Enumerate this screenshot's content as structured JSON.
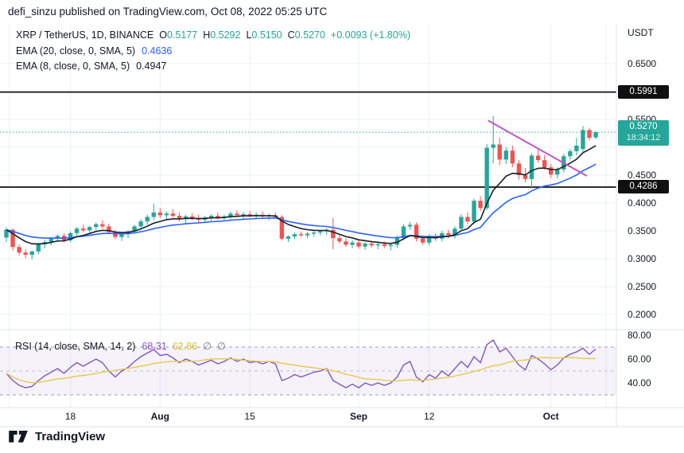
{
  "attribution": "defi_sinzu published on TradingView.com, Oct 08, 2022 05:25 UTC",
  "watermark": "TradingView",
  "legend": {
    "symbol": "XRP / TetherUS, 1D, BINANCE",
    "ohlc": [
      {
        "label": "O",
        "value": "0.5177"
      },
      {
        "label": "H",
        "value": "0.5292"
      },
      {
        "label": "L",
        "value": "0.5150"
      },
      {
        "label": "C",
        "value": "0.5270"
      }
    ],
    "change": "+0.0093 (+1.80%)",
    "indicators": [
      {
        "label": "EMA (20, close, 0, SMA, 5)",
        "value": "0.4636"
      },
      {
        "label": "EMA (8, close, 0, SMA, 5)",
        "value": "0.4947"
      }
    ],
    "rsi": {
      "label": "RSI (14, close, SMA, 14, 2)",
      "value": "68.31",
      "ma_value": "62.86",
      "empty_values": [
        "∅",
        "∅"
      ]
    }
  },
  "price_axis": {
    "currency": "USDT",
    "ticks": [
      {
        "label": "0.6500",
        "price": 0.65
      },
      {
        "label": "0.5500",
        "price": 0.55
      },
      {
        "label": "0.4500",
        "price": 0.45
      },
      {
        "label": "0.4000",
        "price": 0.4
      },
      {
        "label": "0.3500",
        "price": 0.35
      },
      {
        "label": "0.3000",
        "price": 0.3
      },
      {
        "label": "0.2500",
        "price": 0.25
      },
      {
        "label": "0.2000",
        "price": 0.2
      }
    ],
    "level_badges": [
      {
        "label": "0.5991",
        "price": 0.5991,
        "bg": "#101010"
      },
      {
        "label": "0.4286",
        "price": 0.4286,
        "bg": "#101010"
      }
    ],
    "last_price_badge": {
      "label": "0.5270",
      "price": 0.527,
      "countdown": "18:34:12",
      "bg": "#26a69a"
    },
    "rsi_ticks": [
      {
        "label": "80.00",
        "value": 80
      },
      {
        "label": "60.00",
        "value": 60
      },
      {
        "label": "40.00",
        "value": 40
      }
    ]
  },
  "time_axis": {
    "ticks": [
      {
        "label": "18",
        "index": 10,
        "bold": false
      },
      {
        "label": "Aug",
        "index": 24,
        "bold": true
      },
      {
        "label": "15",
        "index": 38,
        "bold": false
      },
      {
        "label": "Sep",
        "index": 55,
        "bold": true
      },
      {
        "label": "12",
        "index": 66,
        "bold": false
      },
      {
        "label": "Oct",
        "index": 85,
        "bold": true
      }
    ],
    "grid_indices": [
      0.5,
      10,
      24,
      38,
      55,
      66,
      85,
      93.6
    ]
  },
  "colors": {
    "up": "#26a69a",
    "down": "#ef5350",
    "grid": "#eef0f5",
    "border": "#e0e3eb",
    "text": "#131722",
    "muted": "#787b86",
    "rsi_band": "rgba(126,87,194,0.08)",
    "rsi_level": "#9598a1"
  },
  "chart_data": {
    "type": "candlestick",
    "symbol": "XRP/USDT",
    "exchange": "BINANCE",
    "interval": "1D",
    "start_date": "2022-07-08",
    "ylim": [
      0.176,
      0.721
    ],
    "grid": true,
    "candles": [
      [
        0.338,
        0.356,
        0.33,
        0.352
      ],
      [
        0.352,
        0.354,
        0.315,
        0.321
      ],
      [
        0.321,
        0.326,
        0.306,
        0.311
      ],
      [
        0.311,
        0.317,
        0.301,
        0.307
      ],
      [
        0.307,
        0.315,
        0.299,
        0.313
      ],
      [
        0.313,
        0.329,
        0.308,
        0.326
      ],
      [
        0.326,
        0.334,
        0.319,
        0.33
      ],
      [
        0.33,
        0.339,
        0.324,
        0.336
      ],
      [
        0.336,
        0.344,
        0.331,
        0.341
      ],
      [
        0.341,
        0.346,
        0.329,
        0.333
      ],
      [
        0.333,
        0.349,
        0.33,
        0.346
      ],
      [
        0.346,
        0.357,
        0.341,
        0.354
      ],
      [
        0.354,
        0.361,
        0.347,
        0.351
      ],
      [
        0.351,
        0.359,
        0.345,
        0.357
      ],
      [
        0.357,
        0.365,
        0.351,
        0.362
      ],
      [
        0.362,
        0.369,
        0.354,
        0.358
      ],
      [
        0.358,
        0.363,
        0.344,
        0.348
      ],
      [
        0.348,
        0.352,
        0.335,
        0.339
      ],
      [
        0.339,
        0.347,
        0.332,
        0.344
      ],
      [
        0.344,
        0.351,
        0.337,
        0.349
      ],
      [
        0.349,
        0.361,
        0.345,
        0.358
      ],
      [
        0.358,
        0.371,
        0.353,
        0.367
      ],
      [
        0.367,
        0.379,
        0.361,
        0.375
      ],
      [
        0.375,
        0.399,
        0.369,
        0.383
      ],
      [
        0.383,
        0.391,
        0.373,
        0.378
      ],
      [
        0.378,
        0.385,
        0.369,
        0.381
      ],
      [
        0.381,
        0.389,
        0.374,
        0.377
      ],
      [
        0.377,
        0.383,
        0.367,
        0.371
      ],
      [
        0.371,
        0.379,
        0.364,
        0.376
      ],
      [
        0.376,
        0.382,
        0.369,
        0.373
      ],
      [
        0.373,
        0.379,
        0.365,
        0.37
      ],
      [
        0.37,
        0.377,
        0.364,
        0.374
      ],
      [
        0.374,
        0.38,
        0.368,
        0.377
      ],
      [
        0.377,
        0.383,
        0.37,
        0.373
      ],
      [
        0.373,
        0.379,
        0.367,
        0.376
      ],
      [
        0.376,
        0.385,
        0.371,
        0.381
      ],
      [
        0.381,
        0.387,
        0.375,
        0.378
      ],
      [
        0.378,
        0.384,
        0.372,
        0.38
      ],
      [
        0.38,
        0.386,
        0.374,
        0.377
      ],
      [
        0.377,
        0.383,
        0.371,
        0.379
      ],
      [
        0.379,
        0.385,
        0.373,
        0.376
      ],
      [
        0.376,
        0.381,
        0.369,
        0.378
      ],
      [
        0.378,
        0.383,
        0.372,
        0.375
      ],
      [
        0.375,
        0.378,
        0.333,
        0.336
      ],
      [
        0.336,
        0.342,
        0.33,
        0.34
      ],
      [
        0.34,
        0.347,
        0.335,
        0.344
      ],
      [
        0.344,
        0.349,
        0.339,
        0.342
      ],
      [
        0.342,
        0.348,
        0.337,
        0.345
      ],
      [
        0.345,
        0.351,
        0.34,
        0.347
      ],
      [
        0.347,
        0.352,
        0.342,
        0.349
      ],
      [
        0.349,
        0.355,
        0.343,
        0.352
      ],
      [
        0.352,
        0.373,
        0.317,
        0.337
      ],
      [
        0.337,
        0.343,
        0.327,
        0.331
      ],
      [
        0.331,
        0.337,
        0.321,
        0.325
      ],
      [
        0.325,
        0.333,
        0.319,
        0.329
      ],
      [
        0.329,
        0.334,
        0.318,
        0.322
      ],
      [
        0.322,
        0.33,
        0.316,
        0.327
      ],
      [
        0.327,
        0.332,
        0.32,
        0.324
      ],
      [
        0.324,
        0.329,
        0.317,
        0.326
      ],
      [
        0.326,
        0.331,
        0.319,
        0.323
      ],
      [
        0.323,
        0.329,
        0.315,
        0.325
      ],
      [
        0.325,
        0.341,
        0.32,
        0.337
      ],
      [
        0.337,
        0.362,
        0.333,
        0.358
      ],
      [
        0.358,
        0.366,
        0.352,
        0.361
      ],
      [
        0.361,
        0.365,
        0.331,
        0.336
      ],
      [
        0.336,
        0.342,
        0.325,
        0.329
      ],
      [
        0.329,
        0.344,
        0.324,
        0.34
      ],
      [
        0.34,
        0.346,
        0.332,
        0.336
      ],
      [
        0.336,
        0.35,
        0.331,
        0.346
      ],
      [
        0.346,
        0.352,
        0.337,
        0.342
      ],
      [
        0.342,
        0.358,
        0.336,
        0.354
      ],
      [
        0.354,
        0.38,
        0.349,
        0.375
      ],
      [
        0.375,
        0.383,
        0.362,
        0.367
      ],
      [
        0.367,
        0.408,
        0.362,
        0.404
      ],
      [
        0.404,
        0.412,
        0.386,
        0.391
      ],
      [
        0.391,
        0.506,
        0.387,
        0.499
      ],
      [
        0.499,
        0.556,
        0.471,
        0.505
      ],
      [
        0.505,
        0.517,
        0.468,
        0.478
      ],
      [
        0.478,
        0.5,
        0.47,
        0.494
      ],
      [
        0.494,
        0.503,
        0.464,
        0.471
      ],
      [
        0.471,
        0.477,
        0.442,
        0.45
      ],
      [
        0.45,
        0.463,
        0.437,
        0.443
      ],
      [
        0.443,
        0.489,
        0.426,
        0.485
      ],
      [
        0.485,
        0.496,
        0.472,
        0.477
      ],
      [
        0.477,
        0.486,
        0.46,
        0.464
      ],
      [
        0.464,
        0.47,
        0.445,
        0.451
      ],
      [
        0.451,
        0.464,
        0.444,
        0.46
      ],
      [
        0.46,
        0.488,
        0.455,
        0.484
      ],
      [
        0.484,
        0.497,
        0.478,
        0.493
      ],
      [
        0.493,
        0.517,
        0.486,
        0.503
      ],
      [
        0.497,
        0.538,
        0.492,
        0.531
      ],
      [
        0.531,
        0.535,
        0.512,
        0.517
      ],
      [
        0.5177,
        0.5292,
        0.515,
        0.527
      ]
    ],
    "overlays": [
      {
        "name": "EMA (20, close, 0, SMA, 5)",
        "period": 20,
        "color": "#2962ff",
        "last_value": 0.4636
      },
      {
        "name": "EMA (8, close, 0, SMA, 5)",
        "period": 8,
        "color": "#1b1f27",
        "last_value": 0.4947
      }
    ],
    "annotations": [
      {
        "type": "horizontal-line",
        "price": 0.5991,
        "color": "#111111"
      },
      {
        "type": "horizontal-line",
        "price": 0.4286,
        "color": "#111111"
      },
      {
        "type": "price-line",
        "price": 0.527,
        "color": "#26a69a"
      },
      {
        "type": "trendline",
        "from_index": 75.2,
        "from_price": 0.548,
        "to_index": 90.6,
        "to_price": 0.4485,
        "color": "#c353cf"
      }
    ],
    "rsi_pane": {
      "period": 14,
      "ma_period": 14,
      "band": [
        30,
        70
      ],
      "levels": [
        70,
        50,
        30
      ],
      "color": "#7e57c2",
      "ma_color": "#e8c94e",
      "last_value": 68.31,
      "ma_last_value": 62.86,
      "values": [
        48,
        42,
        38,
        36,
        37,
        42,
        46,
        49,
        52,
        48,
        53,
        57,
        54,
        57,
        60,
        57,
        50,
        45,
        50,
        53,
        58,
        62,
        65,
        68,
        63,
        64,
        61,
        57,
        60,
        58,
        55,
        57,
        59,
        56,
        58,
        61,
        58,
        60,
        57,
        58,
        56,
        58,
        56,
        42,
        44,
        47,
        45,
        47,
        49,
        50,
        52,
        42,
        39,
        36,
        39,
        36,
        40,
        38,
        40,
        38,
        40,
        45,
        55,
        58,
        45,
        41,
        47,
        44,
        50,
        46,
        52,
        58,
        53,
        62,
        57,
        72,
        76,
        66,
        69,
        62,
        55,
        51,
        63,
        60,
        56,
        51,
        55,
        61,
        64,
        66,
        69,
        64,
        68.31
      ]
    }
  }
}
